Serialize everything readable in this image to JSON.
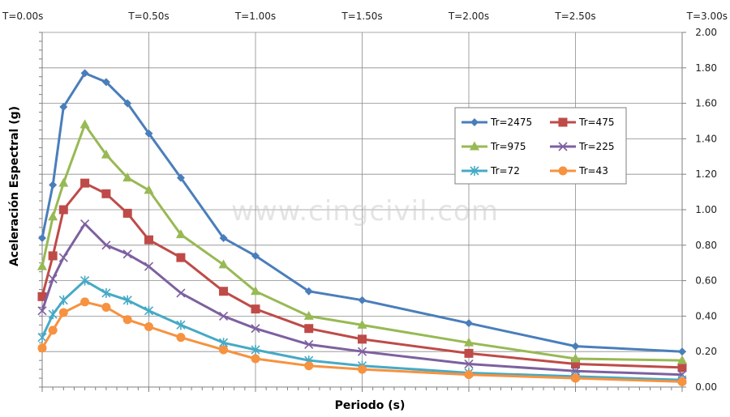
{
  "chart_data": {
    "type": "line",
    "title": "",
    "xlabel": "Periodo (s)",
    "ylabel": "Aceleración Espectral (g)",
    "xlim": [
      0,
      3
    ],
    "ylim": [
      0,
      2
    ],
    "x_top_ticks": [
      "T=0.00s",
      "T=0.50s",
      "T=1.00s",
      "T=1.50s",
      "T=2.00s",
      "T=2.50s",
      "T=3.00s"
    ],
    "y_ticks": [
      "0.00",
      "0.20",
      "0.40",
      "0.60",
      "0.80",
      "1.00",
      "1.20",
      "1.40",
      "1.60",
      "1.80",
      "2.00"
    ],
    "grid": true,
    "legend_position": "right",
    "watermark": "www.cingcivil.com",
    "x": [
      0,
      0.05,
      0.1,
      0.2,
      0.3,
      0.4,
      0.5,
      0.65,
      0.85,
      1.0,
      1.25,
      1.5,
      2.0,
      2.5,
      3.0
    ],
    "series": [
      {
        "name": "Tr=2475",
        "color": "#4a7ebb",
        "marker": "diamond",
        "values": [
          0.84,
          1.14,
          1.58,
          1.77,
          1.72,
          1.6,
          1.43,
          1.18,
          0.84,
          0.74,
          0.54,
          0.49,
          0.36,
          0.23,
          0.2
        ]
      },
      {
        "name": "Tr=475",
        "color": "#be4b48",
        "marker": "square",
        "values": [
          0.51,
          0.74,
          1.0,
          1.15,
          1.09,
          0.98,
          0.83,
          0.73,
          0.54,
          0.44,
          0.33,
          0.27,
          0.19,
          0.13,
          0.11
        ]
      },
      {
        "name": "Tr=975",
        "color": "#98b954",
        "marker": "triangle",
        "values": [
          0.68,
          0.96,
          1.15,
          1.48,
          1.31,
          1.18,
          1.11,
          0.86,
          0.69,
          0.54,
          0.4,
          0.35,
          0.25,
          0.16,
          0.15
        ]
      },
      {
        "name": "Tr=225",
        "color": "#7d60a0",
        "marker": "x",
        "values": [
          0.43,
          0.61,
          0.73,
          0.92,
          0.8,
          0.75,
          0.68,
          0.53,
          0.4,
          0.33,
          0.24,
          0.2,
          0.13,
          0.09,
          0.07
        ]
      },
      {
        "name": "Tr=72",
        "color": "#46aac5",
        "marker": "star",
        "values": [
          0.28,
          0.41,
          0.49,
          0.6,
          0.53,
          0.49,
          0.43,
          0.35,
          0.25,
          0.21,
          0.15,
          0.12,
          0.08,
          0.06,
          0.04
        ]
      },
      {
        "name": "Tr=43",
        "color": "#f69240",
        "marker": "circle",
        "values": [
          0.22,
          0.32,
          0.42,
          0.48,
          0.45,
          0.38,
          0.34,
          0.28,
          0.21,
          0.16,
          0.12,
          0.1,
          0.07,
          0.05,
          0.03
        ]
      }
    ]
  }
}
